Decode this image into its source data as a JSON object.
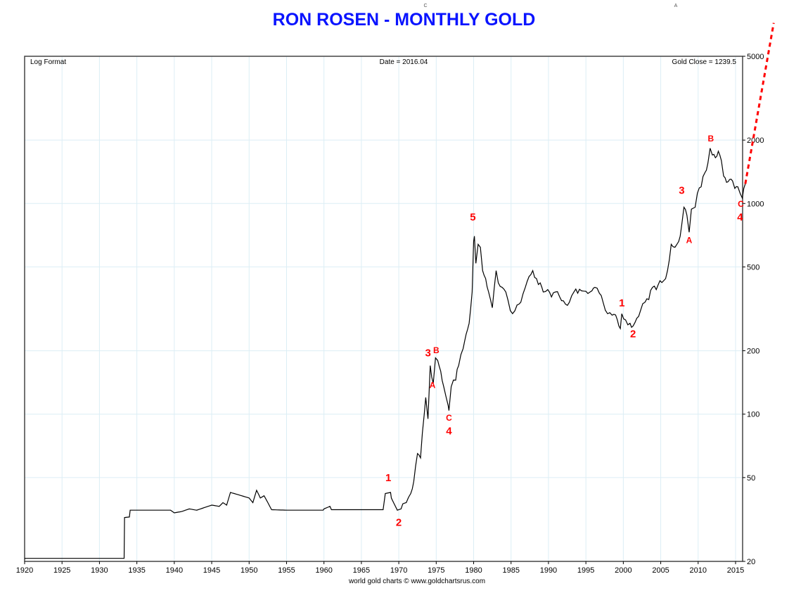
{
  "title": "RON ROSEN - MONTHLY GOLD",
  "top_marks": [
    "C",
    "A"
  ],
  "chart_data": {
    "type": "line",
    "title": "RON ROSEN - MONTHLY GOLD",
    "scale": "log",
    "header_left": "Log Format",
    "header_center": "Date = 2016.04",
    "header_right": "Gold Close = 1239.5",
    "footer": "world gold charts © www.goldchartsrus.com",
    "xlim": [
      1920,
      2016.3
    ],
    "ylim": [
      20,
      5000
    ],
    "x_ticks": [
      "1920",
      "1925",
      "1930",
      "1935",
      "1940",
      "1945",
      "1950",
      "1955",
      "1960",
      "1965",
      "1970",
      "1975",
      "1980",
      "1985",
      "1990",
      "1995",
      "2000",
      "2005",
      "2010",
      "2015"
    ],
    "y_ticks": [
      "5000",
      "2000",
      "1000",
      "500",
      "200",
      "100",
      "50",
      "20"
    ],
    "grid": true,
    "series": [
      {
        "name": "Gold monthly close",
        "color": "#000000",
        "points": [
          [
            1920,
            20.67
          ],
          [
            1933.3,
            20.67
          ],
          [
            1933.35,
            32.3
          ],
          [
            1934,
            32.5
          ],
          [
            1934.1,
            35
          ],
          [
            1939.5,
            35
          ],
          [
            1940,
            34
          ],
          [
            1941,
            34.5
          ],
          [
            1942,
            35.5
          ],
          [
            1943,
            35
          ],
          [
            1944,
            36
          ],
          [
            1945,
            37
          ],
          [
            1946,
            36.5
          ],
          [
            1946.5,
            38
          ],
          [
            1947,
            37
          ],
          [
            1947.5,
            42.5
          ],
          [
            1948,
            42
          ],
          [
            1949,
            41
          ],
          [
            1950,
            40
          ],
          [
            1950.5,
            38
          ],
          [
            1951,
            43.5
          ],
          [
            1951.5,
            40
          ],
          [
            1952,
            41
          ],
          [
            1952.5,
            38
          ],
          [
            1953,
            35.2
          ],
          [
            1955,
            35
          ],
          [
            1959.9,
            35
          ],
          [
            1960,
            35.5
          ],
          [
            1960.8,
            36.5
          ],
          [
            1961,
            35.2
          ],
          [
            1967.9,
            35.2
          ],
          [
            1968.2,
            42
          ],
          [
            1968.9,
            42.5
          ],
          [
            1969,
            40
          ],
          [
            1969.8,
            35
          ],
          [
            1970.3,
            35.5
          ],
          [
            1971,
            38
          ],
          [
            1971.6,
            42
          ],
          [
            1972,
            48
          ],
          [
            1972.5,
            65
          ],
          [
            1972.9,
            62
          ],
          [
            1973.4,
            100
          ],
          [
            1973.6,
            120
          ],
          [
            1973.9,
            95
          ],
          [
            1974.2,
            170
          ],
          [
            1974.4,
            150
          ],
          [
            1974.6,
            140
          ],
          [
            1974.9,
            185
          ],
          [
            1975.2,
            180
          ],
          [
            1975.6,
            160
          ],
          [
            1976,
            135
          ],
          [
            1976.6,
            110
          ],
          [
            1976.7,
            104
          ],
          [
            1977,
            135
          ],
          [
            1977.6,
            145
          ],
          [
            1978,
            170
          ],
          [
            1978.6,
            205
          ],
          [
            1979,
            240
          ],
          [
            1979.4,
            270
          ],
          [
            1979.8,
            380
          ],
          [
            1980,
            660
          ],
          [
            1980.1,
            700
          ],
          [
            1980.3,
            520
          ],
          [
            1980.6,
            640
          ],
          [
            1980.9,
            620
          ],
          [
            1981.2,
            480
          ],
          [
            1981.6,
            440
          ],
          [
            1982,
            380
          ],
          [
            1982.5,
            320
          ],
          [
            1983,
            480
          ],
          [
            1983.3,
            420
          ],
          [
            1983.8,
            400
          ],
          [
            1984.3,
            380
          ],
          [
            1984.9,
            310
          ],
          [
            1985.2,
            300
          ],
          [
            1985.8,
            330
          ],
          [
            1986.3,
            340
          ],
          [
            1986.9,
            400
          ],
          [
            1987.4,
            450
          ],
          [
            1987.9,
            480
          ],
          [
            1988.4,
            440
          ],
          [
            1988.9,
            420
          ],
          [
            1989.3,
            380
          ],
          [
            1989.9,
            390
          ],
          [
            1990.4,
            360
          ],
          [
            1990.9,
            380
          ],
          [
            1991.5,
            360
          ],
          [
            1992,
            345
          ],
          [
            1992.8,
            340
          ],
          [
            1993.4,
            380
          ],
          [
            1993.9,
            375
          ],
          [
            1994.4,
            385
          ],
          [
            1995,
            383
          ],
          [
            1995.8,
            385
          ],
          [
            1996.2,
            400
          ],
          [
            1996.8,
            375
          ],
          [
            1997.3,
            340
          ],
          [
            1997.9,
            300
          ],
          [
            1998.5,
            295
          ],
          [
            1999.2,
            280
          ],
          [
            1999.6,
            255
          ],
          [
            1999.8,
            300
          ],
          [
            2000.3,
            280
          ],
          [
            2000.9,
            270
          ],
          [
            2001.3,
            262
          ],
          [
            2001.8,
            285
          ],
          [
            2002.3,
            310
          ],
          [
            2002.9,
            340
          ],
          [
            2003.4,
            350
          ],
          [
            2003.9,
            400
          ],
          [
            2004.4,
            390
          ],
          [
            2004.9,
            430
          ],
          [
            2005.4,
            430
          ],
          [
            2005.9,
            480
          ],
          [
            2006.4,
            640
          ],
          [
            2006.9,
            620
          ],
          [
            2007.4,
            660
          ],
          [
            2007.8,
            790
          ],
          [
            2008.1,
            960
          ],
          [
            2008.5,
            880
          ],
          [
            2008.8,
            730
          ],
          [
            2009.1,
            940
          ],
          [
            2009.6,
            960
          ],
          [
            2009.9,
            1120
          ],
          [
            2010.4,
            1200
          ],
          [
            2010.9,
            1400
          ],
          [
            2011.3,
            1550
          ],
          [
            2011.6,
            1830
          ],
          [
            2011.9,
            1700
          ],
          [
            2012.3,
            1650
          ],
          [
            2012.7,
            1770
          ],
          [
            2013.1,
            1600
          ],
          [
            2013.4,
            1350
          ],
          [
            2013.8,
            1260
          ],
          [
            2014.2,
            1300
          ],
          [
            2014.6,
            1280
          ],
          [
            2014.9,
            1180
          ],
          [
            2015.3,
            1200
          ],
          [
            2015.6,
            1120
          ],
          [
            2015.9,
            1060
          ],
          [
            2016.1,
            1180
          ],
          [
            2016.3,
            1239.5
          ]
        ]
      }
    ],
    "projection": {
      "color": "#ff0000",
      "style": "dotted",
      "from": [
        2016.3,
        1239.5
      ],
      "to": [
        2020.1,
        7200
      ]
    },
    "annotations": [
      {
        "text": "1",
        "x": 1968.6,
        "y": 48,
        "size": "large"
      },
      {
        "text": "2",
        "x": 1970,
        "y": 29.5,
        "size": "large"
      },
      {
        "text": "3",
        "x": 1973.9,
        "y": 188,
        "size": "large"
      },
      {
        "text": "A",
        "x": 1974.5,
        "y": 133,
        "size": "small"
      },
      {
        "text": "B",
        "x": 1975,
        "y": 195,
        "size": "small"
      },
      {
        "text": "C",
        "x": 1976.7,
        "y": 93,
        "size": "small"
      },
      {
        "text": "4",
        "x": 1976.7,
        "y": 80,
        "size": "large"
      },
      {
        "text": "5",
        "x": 1979.9,
        "y": 830,
        "size": "large"
      },
      {
        "text": "1",
        "x": 1999.8,
        "y": 325,
        "size": "large"
      },
      {
        "text": "2",
        "x": 2001.3,
        "y": 232,
        "size": "large"
      },
      {
        "text": "3",
        "x": 2007.8,
        "y": 1110,
        "size": "large"
      },
      {
        "text": "A",
        "x": 2008.8,
        "y": 650,
        "size": "small"
      },
      {
        "text": "B",
        "x": 2011.7,
        "y": 1970,
        "size": "small"
      },
      {
        "text": "C",
        "x": 2015.7,
        "y": 965,
        "size": "small"
      },
      {
        "text": "4",
        "x": 2015.6,
        "y": 830,
        "size": "large"
      }
    ]
  }
}
